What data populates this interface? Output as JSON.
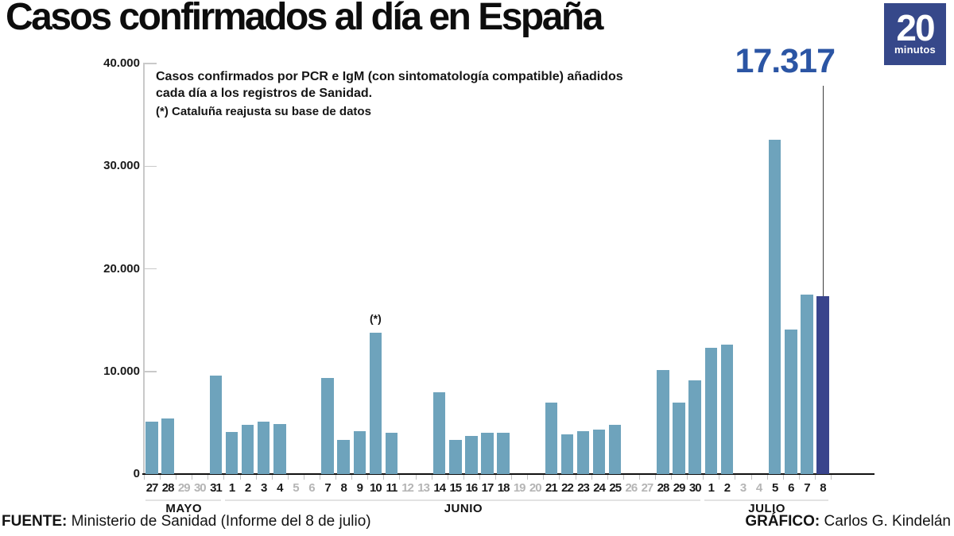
{
  "header": {
    "title": "Casos confirmados al día en España",
    "logo": {
      "number": "20",
      "word": "minutos",
      "bg_color": "#36488a"
    }
  },
  "annotations": {
    "description_lines": [
      "Casos confirmados por PCR e IgM (con sintomatología compatible) añadidos",
      "cada día a los registros de Sanidad."
    ],
    "note": "(*) Cataluña reajusta su base de datos"
  },
  "footer": {
    "source_label": "FUENTE:",
    "source_text": " Ministerio de Sanidad (Informe del 8 de julio)",
    "credit_label": "GRÁFICO:",
    "credit_text": " Carlos G. Kindelán"
  },
  "chart_data": {
    "type": "bar",
    "title": "Casos confirmados al día en España",
    "ylabel": "",
    "xlabel": "",
    "ylim": [
      0,
      40000
    ],
    "yticks": [
      0,
      10000,
      20000,
      30000,
      40000
    ],
    "ytick_labels": [
      "0",
      "10.000",
      "20.000",
      "30.000",
      "40.000"
    ],
    "bar_color": "#6ea3bc",
    "highlight_color": "#39448c",
    "grid": false,
    "legend": "none",
    "star_marker": "(*)",
    "last_value_label": "17.317",
    "days": [
      {
        "m": "MAYO",
        "d": "27",
        "v": 5100
      },
      {
        "m": "MAYO",
        "d": "28",
        "v": 5400
      },
      {
        "m": "MAYO",
        "d": "29",
        "v": null
      },
      {
        "m": "MAYO",
        "d": "30",
        "v": null
      },
      {
        "m": "MAYO",
        "d": "31",
        "v": 9600
      },
      {
        "m": "JUNIO",
        "d": "1",
        "v": 4100
      },
      {
        "m": "JUNIO",
        "d": "2",
        "v": 4800
      },
      {
        "m": "JUNIO",
        "d": "3",
        "v": 5100
      },
      {
        "m": "JUNIO",
        "d": "4",
        "v": 4900
      },
      {
        "m": "JUNIO",
        "d": "5",
        "v": null
      },
      {
        "m": "JUNIO",
        "d": "6",
        "v": null
      },
      {
        "m": "JUNIO",
        "d": "7",
        "v": 9400
      },
      {
        "m": "JUNIO",
        "d": "8",
        "v": 3300
      },
      {
        "m": "JUNIO",
        "d": "9",
        "v": 4200
      },
      {
        "m": "JUNIO",
        "d": "10",
        "v": 13800,
        "star": true
      },
      {
        "m": "JUNIO",
        "d": "11",
        "v": 4000
      },
      {
        "m": "JUNIO",
        "d": "12",
        "v": null
      },
      {
        "m": "JUNIO",
        "d": "13",
        "v": null
      },
      {
        "m": "JUNIO",
        "d": "14",
        "v": 8000
      },
      {
        "m": "JUNIO",
        "d": "15",
        "v": 3300
      },
      {
        "m": "JUNIO",
        "d": "16",
        "v": 3700
      },
      {
        "m": "JUNIO",
        "d": "17",
        "v": 4000
      },
      {
        "m": "JUNIO",
        "d": "18",
        "v": 4000
      },
      {
        "m": "JUNIO",
        "d": "19",
        "v": null
      },
      {
        "m": "JUNIO",
        "d": "20",
        "v": null
      },
      {
        "m": "JUNIO",
        "d": "21",
        "v": 7000
      },
      {
        "m": "JUNIO",
        "d": "22",
        "v": 3900
      },
      {
        "m": "JUNIO",
        "d": "23",
        "v": 4200
      },
      {
        "m": "JUNIO",
        "d": "24",
        "v": 4300
      },
      {
        "m": "JUNIO",
        "d": "25",
        "v": 4800
      },
      {
        "m": "JUNIO",
        "d": "26",
        "v": null
      },
      {
        "m": "JUNIO",
        "d": "27",
        "v": null
      },
      {
        "m": "JUNIO",
        "d": "28",
        "v": 10100
      },
      {
        "m": "JUNIO",
        "d": "29",
        "v": 7000
      },
      {
        "m": "JUNIO",
        "d": "30",
        "v": 9100
      },
      {
        "m": "JULIO",
        "d": "1",
        "v": 12300
      },
      {
        "m": "JULIO",
        "d": "2",
        "v": 12600
      },
      {
        "m": "JULIO",
        "d": "3",
        "v": null
      },
      {
        "m": "JULIO",
        "d": "4",
        "v": null
      },
      {
        "m": "JULIO",
        "d": "5",
        "v": 32600
      },
      {
        "m": "JULIO",
        "d": "6",
        "v": 14100
      },
      {
        "m": "JULIO",
        "d": "7",
        "v": 17500
      },
      {
        "m": "JULIO",
        "d": "8",
        "v": 17317,
        "highlight": true
      }
    ]
  }
}
